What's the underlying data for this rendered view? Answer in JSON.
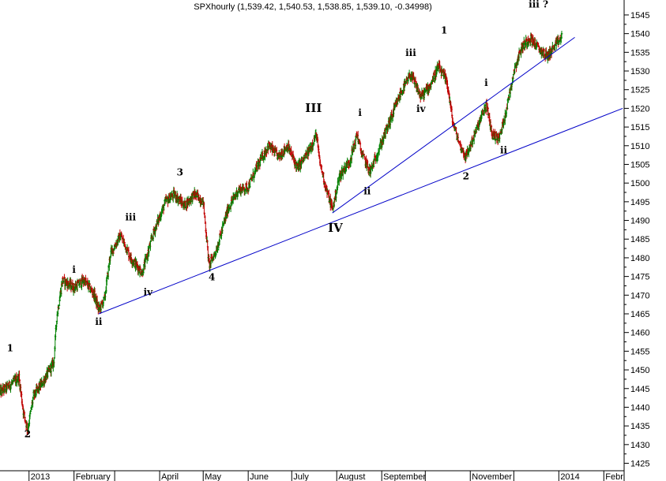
{
  "chart_data": {
    "type": "ohlc",
    "title": "SPXhourly (1,539.42, 1,540.53, 1,538.85, 1,539.10, -0.34998)",
    "xlabel": "",
    "ylabel": "",
    "ylim": [
      1423,
      1549
    ],
    "xlim": [
      "2012-12-12",
      "2014-02-15"
    ],
    "y_axis_position": "right",
    "grid": false,
    "colors": {
      "up": "#008000",
      "down": "#c00000",
      "trendline": "#0000c8",
      "axis": "#000000"
    },
    "yticks": [
      1425,
      1430,
      1435,
      1440,
      1445,
      1450,
      1455,
      1460,
      1465,
      1470,
      1475,
      1480,
      1485,
      1490,
      1495,
      1500,
      1505,
      1510,
      1515,
      1520,
      1525,
      1530,
      1535,
      1540,
      1545
    ],
    "xticks": [
      {
        "date": "2013-01-01",
        "label": "2013"
      },
      {
        "date": "2013-02-01",
        "label": "February"
      },
      {
        "date": "2013-03-01",
        "label": ""
      },
      {
        "date": "2013-04-01",
        "label": "April"
      },
      {
        "date": "2013-05-01",
        "label": "May"
      },
      {
        "date": "2013-06-01",
        "label": "June"
      },
      {
        "date": "2013-07-01",
        "label": "July"
      },
      {
        "date": "2013-08-01",
        "label": "August"
      },
      {
        "date": "2013-09-01",
        "label": "September"
      },
      {
        "date": "2013-10-01",
        "label": ""
      },
      {
        "date": "2013-11-01",
        "label": "November"
      },
      {
        "date": "2013-12-01",
        "label": ""
      },
      {
        "date": "2014-01-01",
        "label": "2014"
      },
      {
        "date": "2014-02-01",
        "label": "Febr"
      }
    ],
    "price_path": [
      {
        "date": "2012-12-12",
        "close": 1444
      },
      {
        "date": "2012-12-19",
        "close": 1446
      },
      {
        "date": "2012-12-25",
        "close": 1448
      },
      {
        "date": "2012-12-28",
        "close": 1439
      },
      {
        "date": "2012-12-31",
        "close": 1434
      },
      {
        "date": "2013-01-04",
        "close": 1443
      },
      {
        "date": "2013-01-11",
        "close": 1447
      },
      {
        "date": "2013-01-18",
        "close": 1452
      },
      {
        "date": "2013-01-20",
        "close": 1464
      },
      {
        "date": "2013-01-24",
        "close": 1474
      },
      {
        "date": "2013-02-01",
        "close": 1472
      },
      {
        "date": "2013-02-08",
        "close": 1474
      },
      {
        "date": "2013-02-15",
        "close": 1470
      },
      {
        "date": "2013-02-18",
        "close": 1466
      },
      {
        "date": "2013-02-22",
        "close": 1469
      },
      {
        "date": "2013-02-26",
        "close": 1481
      },
      {
        "date": "2013-03-05",
        "close": 1486
      },
      {
        "date": "2013-03-12",
        "close": 1480
      },
      {
        "date": "2013-03-20",
        "close": 1476
      },
      {
        "date": "2013-03-28",
        "close": 1487
      },
      {
        "date": "2013-04-05",
        "close": 1495
      },
      {
        "date": "2013-04-11",
        "close": 1497
      },
      {
        "date": "2013-04-18",
        "close": 1494
      },
      {
        "date": "2013-04-25",
        "close": 1497
      },
      {
        "date": "2013-05-01",
        "close": 1495
      },
      {
        "date": "2013-05-05",
        "close": 1478
      },
      {
        "date": "2013-05-10",
        "close": 1482
      },
      {
        "date": "2013-05-18",
        "close": 1493
      },
      {
        "date": "2013-05-25",
        "close": 1498
      },
      {
        "date": "2013-06-01",
        "close": 1499
      },
      {
        "date": "2013-06-08",
        "close": 1505
      },
      {
        "date": "2013-06-15",
        "close": 1510
      },
      {
        "date": "2013-06-22",
        "close": 1507
      },
      {
        "date": "2013-06-28",
        "close": 1510
      },
      {
        "date": "2013-07-05",
        "close": 1504
      },
      {
        "date": "2013-07-12",
        "close": 1508
      },
      {
        "date": "2013-07-18",
        "close": 1513
      },
      {
        "date": "2013-07-20",
        "close": 1506
      },
      {
        "date": "2013-07-25",
        "close": 1498
      },
      {
        "date": "2013-07-29",
        "close": 1493
      },
      {
        "date": "2013-08-03",
        "close": 1502
      },
      {
        "date": "2013-08-10",
        "close": 1506
      },
      {
        "date": "2013-08-15",
        "close": 1513
      },
      {
        "date": "2013-08-18",
        "close": 1508
      },
      {
        "date": "2013-08-24",
        "close": 1503
      },
      {
        "date": "2013-08-31",
        "close": 1510
      },
      {
        "date": "2013-09-07",
        "close": 1517
      },
      {
        "date": "2013-09-14",
        "close": 1524
      },
      {
        "date": "2013-09-21",
        "close": 1529
      },
      {
        "date": "2013-09-28",
        "close": 1523
      },
      {
        "date": "2013-10-04",
        "close": 1526
      },
      {
        "date": "2013-10-10",
        "close": 1531
      },
      {
        "date": "2013-10-16",
        "close": 1527
      },
      {
        "date": "2013-10-20",
        "close": 1516
      },
      {
        "date": "2013-10-25",
        "close": 1510
      },
      {
        "date": "2013-10-29",
        "close": 1507
      },
      {
        "date": "2013-11-05",
        "close": 1514
      },
      {
        "date": "2013-11-12",
        "close": 1521
      },
      {
        "date": "2013-11-16",
        "close": 1513
      },
      {
        "date": "2013-11-21",
        "close": 1512
      },
      {
        "date": "2013-11-26",
        "close": 1520
      },
      {
        "date": "2013-12-01",
        "close": 1530
      },
      {
        "date": "2013-12-06",
        "close": 1536
      },
      {
        "date": "2013-12-12",
        "close": 1539
      },
      {
        "date": "2013-12-18",
        "close": 1536
      },
      {
        "date": "2013-12-24",
        "close": 1534
      },
      {
        "date": "2013-12-30",
        "close": 1537
      },
      {
        "date": "2014-01-03",
        "close": 1539
      }
    ],
    "trendlines": [
      {
        "x1": "2013-02-18",
        "y1": 1465,
        "x2": "2014-02-14",
        "y2": 1520
      },
      {
        "x1": "2013-07-29",
        "y1": 1492,
        "x2": "2014-01-12",
        "y2": 1539
      }
    ],
    "annotations": [
      {
        "text": "1",
        "date": "2012-12-19",
        "price": 1455,
        "size": "small"
      },
      {
        "text": "2",
        "date": "2012-12-31",
        "price": 1432,
        "size": "small"
      },
      {
        "text": "i",
        "date": "2013-02-01",
        "price": 1476,
        "size": "small"
      },
      {
        "text": "ii",
        "date": "2013-02-18",
        "price": 1462,
        "size": "small"
      },
      {
        "text": "iii",
        "date": "2013-03-12",
        "price": 1490,
        "size": "small"
      },
      {
        "text": "iv",
        "date": "2013-03-24",
        "price": 1470,
        "size": "small"
      },
      {
        "text": "3",
        "date": "2013-04-15",
        "price": 1502,
        "size": "small"
      },
      {
        "text": "4",
        "date": "2013-05-07",
        "price": 1474,
        "size": "small"
      },
      {
        "text": "III",
        "date": "2013-07-16",
        "price": 1519,
        "size": "big"
      },
      {
        "text": "IV",
        "date": "2013-07-31",
        "price": 1487,
        "size": "big"
      },
      {
        "text": "i",
        "date": "2013-08-17",
        "price": 1518,
        "size": "small"
      },
      {
        "text": "ii",
        "date": "2013-08-22",
        "price": 1497,
        "size": "small"
      },
      {
        "text": "iii",
        "date": "2013-09-21",
        "price": 1534,
        "size": "small"
      },
      {
        "text": "iv",
        "date": "2013-09-28",
        "price": 1519,
        "size": "small"
      },
      {
        "text": "1",
        "date": "2013-10-14",
        "price": 1540,
        "size": "small"
      },
      {
        "text": "2",
        "date": "2013-10-29",
        "price": 1501,
        "size": "small"
      },
      {
        "text": "i",
        "date": "2013-11-12",
        "price": 1526,
        "size": "small"
      },
      {
        "text": "ii",
        "date": "2013-11-24",
        "price": 1508,
        "size": "small"
      },
      {
        "text": "iii ?",
        "date": "2013-12-18",
        "price": 1547,
        "size": "small"
      }
    ]
  }
}
